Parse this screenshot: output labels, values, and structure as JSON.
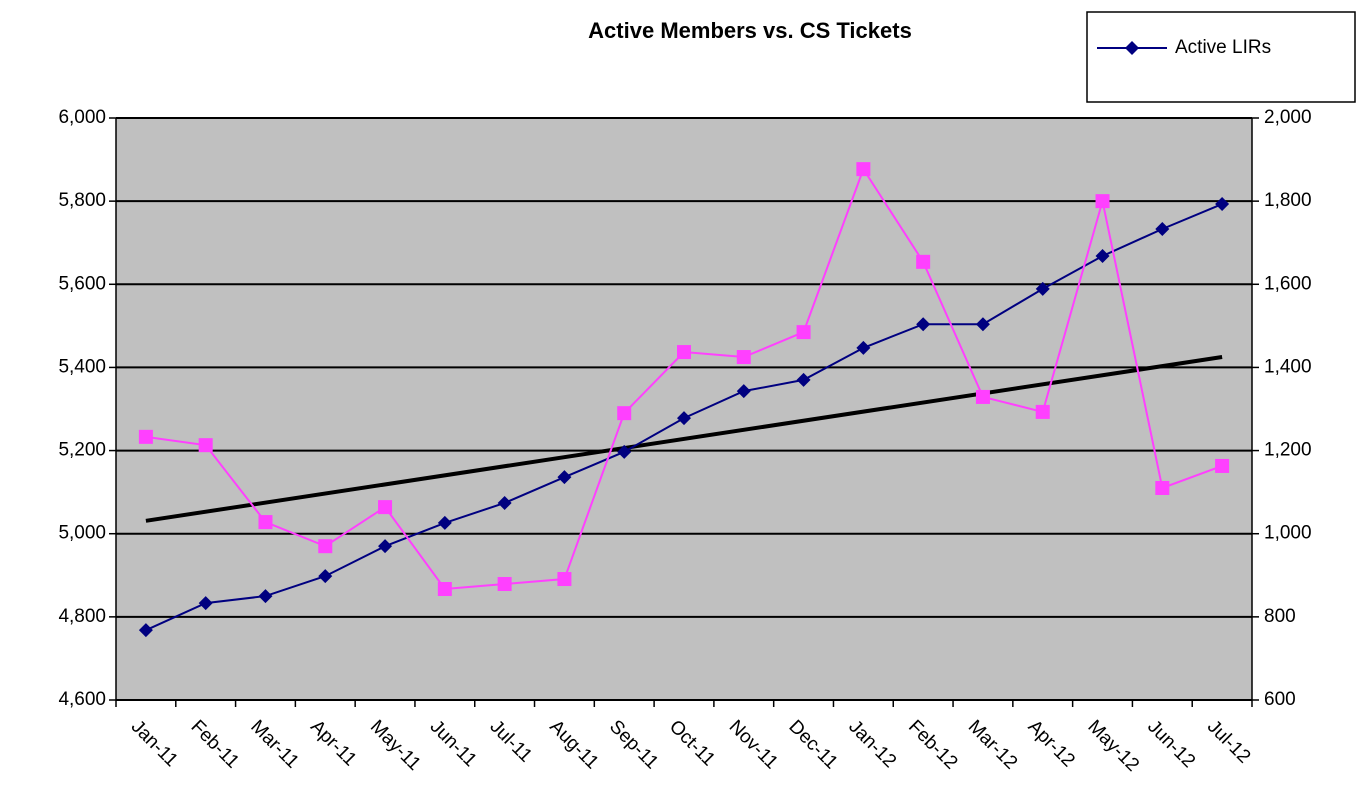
{
  "chart_data": {
    "type": "line",
    "title": "Active Members vs. CS Tickets",
    "categories": [
      "Jan-11",
      "Feb-11",
      "Mar-11",
      "Apr-11",
      "May-11",
      "Jun-11",
      "Jul-11",
      "Aug-11",
      "Sep-11",
      "Oct-11",
      "Nov-11",
      "Dec-11",
      "Jan-12",
      "Feb-12",
      "Mar-12",
      "Apr-12",
      "May-12",
      "Jun-12",
      "Jul-12"
    ],
    "series": [
      {
        "name": "Active LIRs",
        "color": "#000080",
        "marker": "diamond",
        "values": [
          4768,
          4833,
          4850,
          4898,
          4970,
          5026,
          5074,
          5136,
          5197,
          5278,
          5343,
          5370,
          5447,
          5504,
          5504,
          5589,
          5668,
          5733,
          5793
        ]
      },
      {
        "color": "#ff40ff",
        "marker": "square",
        "axis": "y2",
        "values": [
          1233,
          1213,
          1028,
          970,
          1064,
          867,
          879,
          891,
          1290,
          1437,
          1425,
          1485,
          1877,
          1654,
          1329,
          1293,
          1800,
          1110,
          1163
        ]
      }
    ],
    "trendline": {
      "color": "#000000",
      "axis": "y2",
      "values": [
        1031,
        1425
      ]
    },
    "ylim": [
      4600,
      6000
    ],
    "yticks": [
      {
        "value": 4600,
        "label": "4,600"
      },
      {
        "value": 4800,
        "label": "4,800"
      },
      {
        "value": 5000,
        "label": "5,000"
      },
      {
        "value": 5200,
        "label": "5,200"
      },
      {
        "value": 5400,
        "label": "5,400"
      },
      {
        "value": 5600,
        "label": "5,600"
      },
      {
        "value": 5800,
        "label": "5,800"
      },
      {
        "value": 6000,
        "label": "6,000"
      }
    ],
    "y2lim": [
      600,
      2000
    ],
    "y2ticks": [
      600,
      800,
      {
        "value": 1000,
        "label": "1,000"
      },
      {
        "value": 1200,
        "label": "1,200"
      },
      {
        "value": 1400,
        "label": "1,400"
      },
      {
        "value": 1600,
        "label": "1,600"
      },
      {
        "value": 1800,
        "label": "1,800"
      },
      {
        "value": 2000,
        "label": "2,000"
      }
    ],
    "grid": true,
    "plot_background": "#c0c0c0",
    "legend": "top-right"
  }
}
